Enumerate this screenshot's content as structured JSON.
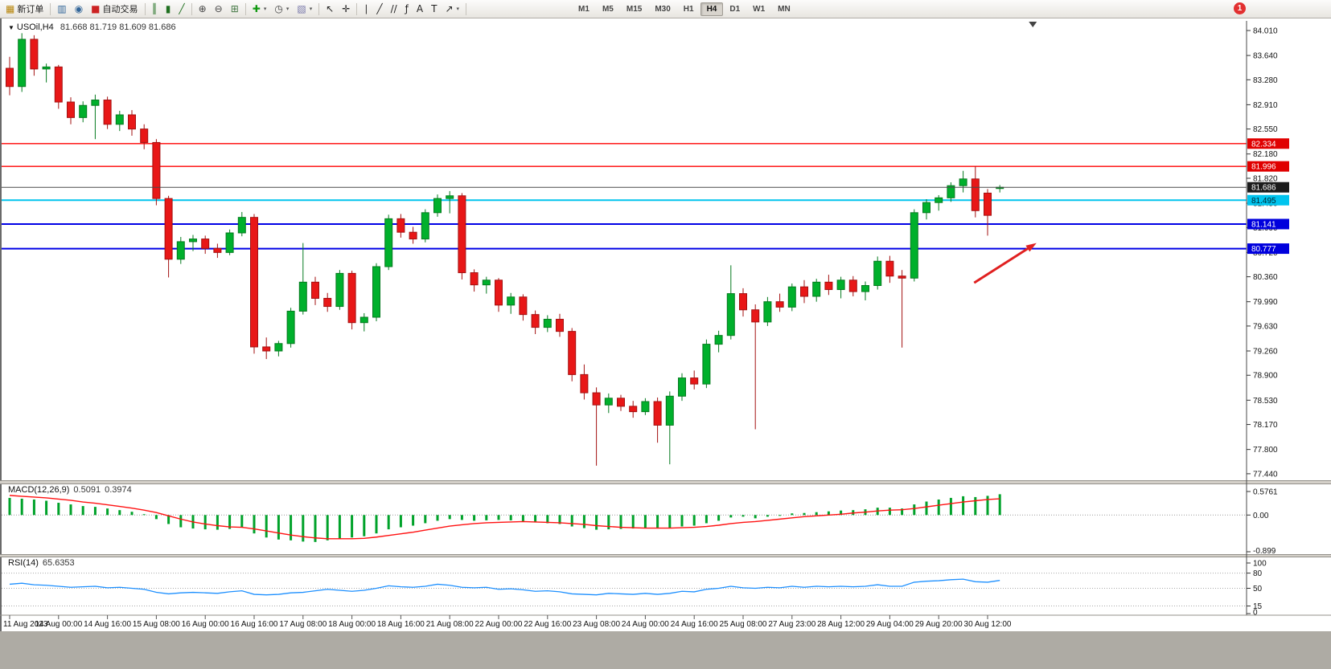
{
  "toolbar": {
    "notification_badge": "1",
    "timeframes": [
      "M1",
      "M5",
      "M15",
      "M30",
      "H1",
      "H4",
      "D1",
      "W1",
      "MN"
    ],
    "active_timeframe": "H4",
    "tools": [
      {
        "type": "button",
        "name": "new-order-button",
        "icon": "new-order-icon",
        "glyph": "▦",
        "glyph_color": "#b8860b",
        "label": "新订单"
      },
      {
        "type": "sep"
      },
      {
        "type": "button",
        "name": "chart-window-button",
        "icon": "chart-window-icon",
        "glyph": "▥",
        "glyph_color": "#336699"
      },
      {
        "type": "button",
        "name": "market-watch-button",
        "icon": "market-watch-icon",
        "glyph": "◉",
        "glyph_color": "#336699"
      },
      {
        "type": "button",
        "name": "auto-trading-button",
        "icon": "auto-trading-icon",
        "glyph": "■",
        "glyph_color": "#cc2222",
        "label": "自动交易"
      },
      {
        "type": "sep"
      },
      {
        "type": "button",
        "name": "bar-chart-type-button",
        "icon": "bar-chart-icon",
        "glyph": "║",
        "glyph_color": "#1f6f1f"
      },
      {
        "type": "button",
        "name": "candlestick-chart-type-button",
        "icon": "candlestick-icon",
        "glyph": "▮",
        "glyph_color": "#1f6f1f"
      },
      {
        "type": "button",
        "name": "line-chart-type-button",
        "icon": "line-chart-icon",
        "glyph": "╱",
        "glyph_color": "#1f6f1f"
      },
      {
        "type": "sep"
      },
      {
        "type": "button",
        "name": "zoom-in-button",
        "icon": "zoom-in-icon",
        "glyph": "⊕",
        "glyph_color": "#444444"
      },
      {
        "type": "button",
        "name": "zoom-out-button",
        "icon": "zoom-out-icon",
        "glyph": "⊖",
        "glyph_color": "#444444"
      },
      {
        "type": "button",
        "name": "tile-windows-button",
        "icon": "tile-windows-icon",
        "glyph": "⊞",
        "glyph_color": "#447744"
      },
      {
        "type": "sep"
      },
      {
        "type": "button",
        "name": "indicators-button",
        "icon": "indicators-plus-icon",
        "glyph": "✚",
        "glyph_color": "#119911",
        "dropdown": true
      },
      {
        "type": "button",
        "name": "periods-button",
        "icon": "clock-icon",
        "glyph": "◷",
        "glyph_color": "#444444",
        "dropdown": true
      },
      {
        "type": "button",
        "name": "templates-button",
        "icon": "template-icon",
        "glyph": "▧",
        "glyph_color": "#7777aa",
        "dropdown": true
      },
      {
        "type": "sep"
      },
      {
        "type": "button",
        "name": "cursor-button",
        "icon": "cursor-icon",
        "glyph": "↖",
        "glyph_color": "#222222"
      },
      {
        "type": "button",
        "name": "crosshair-button",
        "icon": "crosshair-icon",
        "glyph": "✛",
        "glyph_color": "#222222"
      },
      {
        "type": "sep"
      },
      {
        "type": "button",
        "name": "vertical-line-button",
        "icon": "vertical-line-icon",
        "glyph": "∣",
        "glyph_color": "#222222"
      },
      {
        "type": "button",
        "name": "trendline-button",
        "icon": "trendline-icon",
        "glyph": "╱",
        "glyph_color": "#222222"
      },
      {
        "type": "button",
        "name": "channel-button",
        "icon": "channel-icon",
        "glyph": "//",
        "glyph_color": "#222222"
      },
      {
        "type": "button",
        "name": "fibonacci-button",
        "icon": "fibonacci-icon",
        "glyph": "ƒ",
        "glyph_color": "#222222"
      },
      {
        "type": "button",
        "name": "text-button",
        "icon": "text-icon",
        "glyph": "A",
        "glyph_color": "#222222"
      },
      {
        "type": "button",
        "name": "label-button",
        "icon": "label-icon",
        "glyph": "T",
        "glyph_color": "#222222"
      },
      {
        "type": "button",
        "name": "arrows-button",
        "icon": "arrow-object-icon",
        "glyph": "↗",
        "glyph_color": "#222222",
        "dropdown": true
      },
      {
        "type": "sep"
      },
      {
        "type": "spacer"
      }
    ]
  },
  "main_header": {
    "collapse": "▼",
    "symbol": "USOil,H4",
    "ohlc": "81.668 81.719 81.609 81.686"
  },
  "macd_header": {
    "name": "MACD(12,26,9)",
    "main_value": "0.5091",
    "signal_value": "0.3974"
  },
  "rsi_header": {
    "name": "RSI(14)",
    "value": "65.6353"
  },
  "colors": {
    "up": "#067a1f",
    "up_fill": "#00b02c",
    "down": "#a31111",
    "down_fill": "#e81717",
    "macd_hist": "#00a22a",
    "macd_signal": "#ff1111",
    "rsi_line": "#1e90ff",
    "axis_text": "#111111"
  },
  "chart_data": [
    {
      "type": "candlestick",
      "symbol": "USOil",
      "timeframe": "H4",
      "price_axis_ticks": [
        "84.010",
        "83.640",
        "83.280",
        "82.910",
        "82.550",
        "82.180",
        "81.820",
        "81.450",
        "81.090",
        "80.720",
        "80.360",
        "79.990",
        "79.630",
        "79.260",
        "78.900",
        "78.530",
        "78.170",
        "77.800",
        "77.440"
      ],
      "ylim": [
        77.44,
        84.01
      ],
      "hlines": [
        {
          "price": 82.334,
          "label": "82.334",
          "color": "#ff0000",
          "width": 1.4,
          "badge_bg": "#e00000",
          "badge_text": "#ffffff"
        },
        {
          "price": 81.996,
          "label": "81.996",
          "color": "#ff0000",
          "width": 1.4,
          "badge_bg": "#e00000",
          "badge_text": "#ffffff"
        },
        {
          "price": 81.495,
          "label": "81.495",
          "color": "#00c4ee",
          "width": 2,
          "badge_bg": "#00c4ee",
          "badge_text": "#00232e"
        },
        {
          "price": 81.141,
          "label": "81.141",
          "color": "#0000e6",
          "width": 2,
          "badge_bg": "#0000dd",
          "badge_text": "#ffffff"
        },
        {
          "price": 80.777,
          "label": "80.777",
          "color": "#0000e6",
          "width": 2,
          "badge_bg": "#0000dd",
          "badge_text": "#ffffff"
        }
      ],
      "current_price": {
        "price": 81.686,
        "label": "81.686",
        "line_color": "#4a4a4a",
        "badge_bg": "#1c1c1c",
        "badge_text": "#ffffff"
      },
      "time_axis_labels": [
        "11 Aug 2023",
        "14 Aug 00:00",
        "14 Aug 16:00",
        "15 Aug 08:00",
        "16 Aug 00:00",
        "16 Aug 16:00",
        "17 Aug 08:00",
        "18 Aug 00:00",
        "18 Aug 16:00",
        "21 Aug 08:00",
        "22 Aug 00:00",
        "22 Aug 16:00",
        "23 Aug 08:00",
        "24 Aug 00:00",
        "24 Aug 16:00",
        "25 Aug 08:00",
        "27 Aug 23:00",
        "28 Aug 12:00",
        "29 Aug 04:00",
        "29 Aug 20:00",
        "30 Aug 12:00"
      ],
      "bars_per_label": 4,
      "arrow_annotation": {
        "from_bar": 78.9,
        "from_price": 80.27,
        "to_bar": 84.0,
        "to_price": 80.86,
        "color": "#e02020"
      },
      "shift_marker_bar": 83.7,
      "candles": [
        [
          83.45,
          83.62,
          83.05,
          83.18
        ],
        [
          83.18,
          83.97,
          83.1,
          83.88
        ],
        [
          83.88,
          83.94,
          83.34,
          83.44
        ],
        [
          83.44,
          83.52,
          83.24,
          83.47
        ],
        [
          83.47,
          83.5,
          82.85,
          82.95
        ],
        [
          82.95,
          83.02,
          82.62,
          82.72
        ],
        [
          82.72,
          82.96,
          82.65,
          82.9
        ],
        [
          82.9,
          83.06,
          82.4,
          82.98
        ],
        [
          82.98,
          83.03,
          82.55,
          82.62
        ],
        [
          82.62,
          82.82,
          82.52,
          82.76
        ],
        [
          82.76,
          82.83,
          82.45,
          82.55
        ],
        [
          82.55,
          82.62,
          82.25,
          82.35
        ],
        [
          82.35,
          82.4,
          81.42,
          81.52
        ],
        [
          81.52,
          81.56,
          80.35,
          80.62
        ],
        [
          80.62,
          80.95,
          80.55,
          80.88
        ],
        [
          80.88,
          80.98,
          80.74,
          80.92
        ],
        [
          80.92,
          80.97,
          80.7,
          80.78
        ],
        [
          80.78,
          80.85,
          80.64,
          80.72
        ],
        [
          80.72,
          81.06,
          80.68,
          81.01
        ],
        [
          81.01,
          81.32,
          80.96,
          81.24
        ],
        [
          81.24,
          81.29,
          79.22,
          79.32
        ],
        [
          79.32,
          79.46,
          79.14,
          79.26
        ],
        [
          79.26,
          79.41,
          79.18,
          79.37
        ],
        [
          79.37,
          79.9,
          79.31,
          79.85
        ],
        [
          79.85,
          80.86,
          79.8,
          80.28
        ],
        [
          80.28,
          80.36,
          79.94,
          80.04
        ],
        [
          80.04,
          80.12,
          79.84,
          79.92
        ],
        [
          79.92,
          80.46,
          79.87,
          80.41
        ],
        [
          80.41,
          80.45,
          79.58,
          79.68
        ],
        [
          79.68,
          79.82,
          79.55,
          79.76
        ],
        [
          79.76,
          80.56,
          79.7,
          80.51
        ],
        [
          80.51,
          81.28,
          80.46,
          81.22
        ],
        [
          81.22,
          81.29,
          80.94,
          81.02
        ],
        [
          81.02,
          81.1,
          80.85,
          80.92
        ],
        [
          80.92,
          81.36,
          80.87,
          81.31
        ],
        [
          81.31,
          81.58,
          81.25,
          81.52
        ],
        [
          81.52,
          81.63,
          81.3,
          81.56
        ],
        [
          81.56,
          81.6,
          80.32,
          80.42
        ],
        [
          80.42,
          80.47,
          80.14,
          80.24
        ],
        [
          80.24,
          80.36,
          80.11,
          80.31
        ],
        [
          80.31,
          80.34,
          79.84,
          79.94
        ],
        [
          79.94,
          80.12,
          79.81,
          80.06
        ],
        [
          80.06,
          80.1,
          79.71,
          79.8
        ],
        [
          79.8,
          79.86,
          79.51,
          79.61
        ],
        [
          79.61,
          79.79,
          79.54,
          79.73
        ],
        [
          79.73,
          79.81,
          79.47,
          79.55
        ],
        [
          79.55,
          79.6,
          78.81,
          78.91
        ],
        [
          78.91,
          79.06,
          78.54,
          78.64
        ],
        [
          78.64,
          78.72,
          77.56,
          78.46
        ],
        [
          78.46,
          78.63,
          78.34,
          78.56
        ],
        [
          78.56,
          78.61,
          78.37,
          78.44
        ],
        [
          78.44,
          78.52,
          78.27,
          78.36
        ],
        [
          78.36,
          78.56,
          78.31,
          78.51
        ],
        [
          78.51,
          78.57,
          77.9,
          78.16
        ],
        [
          78.16,
          78.66,
          77.58,
          78.59
        ],
        [
          78.59,
          78.93,
          78.52,
          78.86
        ],
        [
          78.86,
          78.97,
          78.69,
          78.77
        ],
        [
          78.77,
          79.43,
          78.71,
          79.36
        ],
        [
          79.36,
          79.56,
          79.24,
          79.49
        ],
        [
          79.49,
          80.53,
          79.43,
          80.11
        ],
        [
          80.11,
          80.19,
          79.77,
          79.87
        ],
        [
          79.87,
          79.95,
          78.1,
          79.69
        ],
        [
          79.69,
          80.06,
          79.63,
          79.99
        ],
        [
          79.99,
          80.11,
          79.84,
          79.91
        ],
        [
          79.91,
          80.26,
          79.85,
          80.21
        ],
        [
          80.21,
          80.31,
          79.97,
          80.07
        ],
        [
          80.07,
          80.33,
          79.99,
          80.28
        ],
        [
          80.28,
          80.39,
          80.09,
          80.17
        ],
        [
          80.17,
          80.36,
          80.04,
          80.31
        ],
        [
          80.31,
          80.37,
          80.07,
          80.14
        ],
        [
          80.14,
          80.29,
          80.01,
          80.23
        ],
        [
          80.23,
          80.66,
          80.17,
          80.59
        ],
        [
          80.59,
          80.67,
          80.27,
          80.37
        ],
        [
          80.37,
          80.46,
          79.31,
          80.34
        ],
        [
          80.34,
          81.36,
          80.29,
          81.31
        ],
        [
          81.31,
          81.51,
          81.21,
          81.46
        ],
        [
          81.46,
          81.57,
          81.34,
          81.53
        ],
        [
          81.53,
          81.76,
          81.47,
          81.71
        ],
        [
          81.71,
          81.93,
          81.61,
          81.81
        ],
        [
          81.81,
          82.0,
          81.24,
          81.34
        ],
        [
          81.6,
          81.66,
          80.97,
          81.27
        ],
        [
          81.668,
          81.719,
          81.609,
          81.686
        ]
      ]
    },
    {
      "type": "macd_histogram",
      "label": "MACD(12,26,9)",
      "current_values": [
        0.5091,
        0.3974
      ],
      "range": [
        -0.899,
        0.5761
      ],
      "axis_ticks": [
        {
          "v": 0.5761,
          "label": "0.5761"
        },
        {
          "v": 0,
          "label": "0.00"
        },
        {
          "v": -0.899,
          "label": "-0.899"
        }
      ],
      "values_hist": [
        0.42,
        0.4,
        0.38,
        0.35,
        0.3,
        0.26,
        0.22,
        0.2,
        0.16,
        0.12,
        0.08,
        0.02,
        -0.1,
        -0.22,
        -0.3,
        -0.33,
        -0.35,
        -0.36,
        -0.34,
        -0.3,
        -0.45,
        -0.55,
        -0.6,
        -0.62,
        -0.65,
        -0.66,
        -0.62,
        -0.58,
        -0.55,
        -0.52,
        -0.45,
        -0.35,
        -0.3,
        -0.26,
        -0.2,
        -0.14,
        -0.1,
        -0.12,
        -0.14,
        -0.13,
        -0.12,
        -0.13,
        -0.15,
        -0.18,
        -0.2,
        -0.22,
        -0.28,
        -0.32,
        -0.36,
        -0.35,
        -0.34,
        -0.33,
        -0.32,
        -0.33,
        -0.32,
        -0.28,
        -0.26,
        -0.2,
        -0.14,
        -0.06,
        -0.04,
        -0.08,
        -0.04,
        0.0,
        0.04,
        0.05,
        0.07,
        0.09,
        0.11,
        0.12,
        0.14,
        0.18,
        0.18,
        0.16,
        0.26,
        0.33,
        0.38,
        0.42,
        0.46,
        0.44,
        0.47,
        0.5091
      ],
      "values_signal": [
        0.48,
        0.46,
        0.44,
        0.42,
        0.39,
        0.36,
        0.32,
        0.29,
        0.25,
        0.21,
        0.17,
        0.12,
        0.06,
        -0.02,
        -0.1,
        -0.17,
        -0.22,
        -0.26,
        -0.29,
        -0.3,
        -0.34,
        -0.39,
        -0.44,
        -0.49,
        -0.53,
        -0.56,
        -0.58,
        -0.58,
        -0.58,
        -0.57,
        -0.54,
        -0.5,
        -0.46,
        -0.42,
        -0.37,
        -0.32,
        -0.27,
        -0.24,
        -0.21,
        -0.19,
        -0.18,
        -0.17,
        -0.16,
        -0.17,
        -0.18,
        -0.19,
        -0.21,
        -0.23,
        -0.26,
        -0.28,
        -0.3,
        -0.31,
        -0.32,
        -0.32,
        -0.32,
        -0.31,
        -0.3,
        -0.28,
        -0.25,
        -0.21,
        -0.18,
        -0.16,
        -0.13,
        -0.1,
        -0.07,
        -0.04,
        -0.02,
        0.0,
        0.02,
        0.05,
        0.07,
        0.1,
        0.12,
        0.13,
        0.16,
        0.2,
        0.24,
        0.28,
        0.32,
        0.35,
        0.38,
        0.3974
      ]
    },
    {
      "type": "rsi_line",
      "label": "RSI(14)",
      "current_value": 65.6353,
      "range": [
        0,
        100
      ],
      "levels": [
        80,
        50,
        15
      ],
      "axis_ticks": [
        {
          "v": 100,
          "label": "100"
        },
        {
          "v": 80,
          "label": "80"
        },
        {
          "v": 50,
          "label": "50"
        },
        {
          "v": 15,
          "label": "15"
        },
        {
          "v": 0,
          "label": "0"
        }
      ],
      "values": [
        58,
        60,
        57,
        56,
        54,
        52,
        53,
        54,
        51,
        52,
        50,
        48,
        42,
        39,
        41,
        42,
        41,
        40,
        43,
        45,
        38,
        37,
        38,
        41,
        42,
        45,
        48,
        46,
        44,
        46,
        50,
        55,
        53,
        52,
        54,
        58,
        56,
        52,
        51,
        52,
        48,
        49,
        47,
        44,
        45,
        43,
        39,
        38,
        37,
        40,
        39,
        38,
        40,
        38,
        40,
        44,
        43,
        48,
        50,
        54,
        51,
        50,
        52,
        51,
        54,
        52,
        54,
        53,
        54,
        53,
        54,
        57,
        54,
        54,
        62,
        64,
        65,
        67,
        68,
        63,
        62,
        65.6
      ]
    }
  ]
}
